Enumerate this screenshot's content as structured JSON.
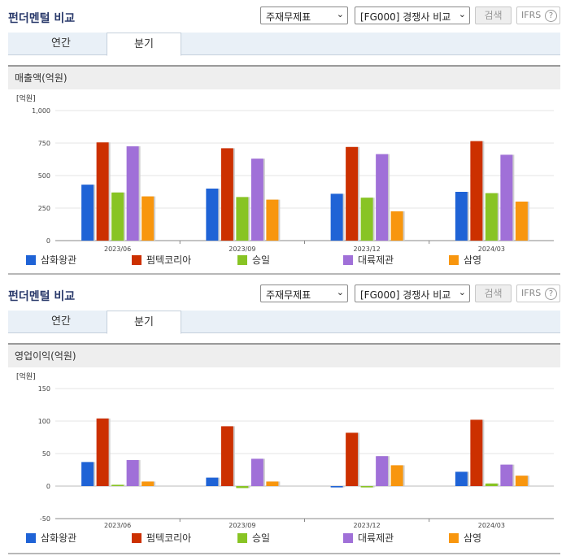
{
  "panels": [
    {
      "title": "펀더멘털 비교",
      "select1": "주재무제표",
      "select2": "[FG000] 경쟁사 비교",
      "search_btn": "검색",
      "ifrs": "IFRS",
      "ifrs_help": "?",
      "tabs": [
        "연간",
        "분기"
      ],
      "active_tab": "분기",
      "section": "매출액(억원)"
    },
    {
      "title": "펀더멘털 비교",
      "select1": "주재무제표",
      "select2": "[FG000] 경쟁사 비교",
      "search_btn": "검색",
      "ifrs": "IFRS",
      "ifrs_help": "?",
      "tabs": [
        "연간",
        "분기"
      ],
      "active_tab": "분기",
      "section": "영업이익(억원)"
    }
  ],
  "chart_data": [
    {
      "type": "bar",
      "unit_label": "[억원]",
      "categories": [
        "2023/06",
        "2023/09",
        "2023/12",
        "2024/03"
      ],
      "ylim": [
        0,
        1000
      ],
      "yticks": [
        "0",
        "250",
        "500",
        "750",
        "1,000"
      ],
      "ytick_values": [
        0,
        250,
        500,
        750,
        1000
      ],
      "series": [
        {
          "name": "삼화왕관",
          "color": "#1f63d6",
          "values": [
            430,
            400,
            360,
            375
          ]
        },
        {
          "name": "펌텍코리아",
          "color": "#cc3000",
          "values": [
            755,
            710,
            720,
            765
          ]
        },
        {
          "name": "승일",
          "color": "#88c424",
          "values": [
            370,
            335,
            330,
            365
          ]
        },
        {
          "name": "대륙제관",
          "color": "#a070d8",
          "values": [
            725,
            630,
            665,
            660
          ]
        },
        {
          "name": "삼영",
          "color": "#f8960e",
          "values": [
            340,
            315,
            225,
            300
          ]
        }
      ]
    },
    {
      "type": "bar",
      "unit_label": "[억원]",
      "categories": [
        "2023/06",
        "2023/09",
        "2023/12",
        "2024/03"
      ],
      "ylim": [
        -50,
        150
      ],
      "yticks": [
        "-50",
        "0",
        "50",
        "100",
        "150"
      ],
      "ytick_values": [
        -50,
        0,
        50,
        100,
        150
      ],
      "series": [
        {
          "name": "삼화왕관",
          "color": "#1f63d6",
          "values": [
            37,
            13,
            -2,
            22
          ]
        },
        {
          "name": "펌텍코리아",
          "color": "#cc3000",
          "values": [
            104,
            92,
            82,
            102
          ]
        },
        {
          "name": "승일",
          "color": "#88c424",
          "values": [
            2,
            -3,
            -2,
            4
          ]
        },
        {
          "name": "대륙제관",
          "color": "#a070d8",
          "values": [
            40,
            42,
            46,
            33
          ]
        },
        {
          "name": "삼영",
          "color": "#f8960e",
          "values": [
            7,
            7,
            32,
            16
          ]
        }
      ]
    }
  ]
}
